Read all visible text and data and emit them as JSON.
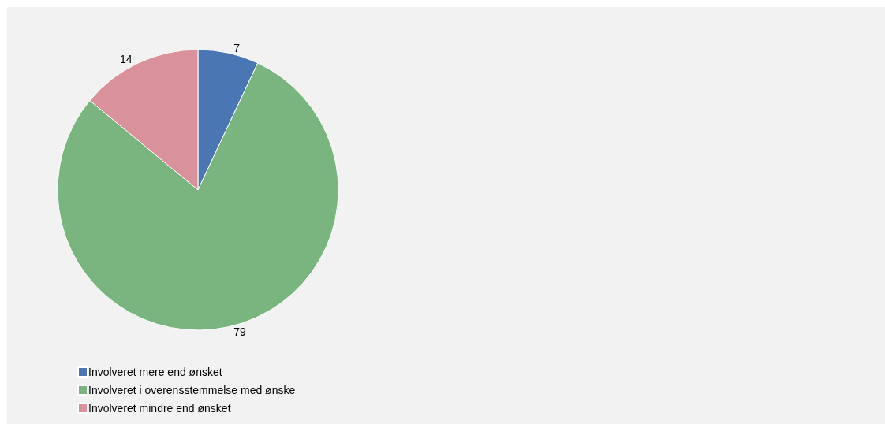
{
  "chart_data": {
    "type": "pie",
    "categories": [
      "Involveret mere end ønsket",
      "Involveret i overensstemmelse med ønske",
      "Involveret mindre end ønsket"
    ],
    "values": [
      7,
      79,
      14
    ],
    "colors": [
      "#4a76b4",
      "#7ab580",
      "#d9919b"
    ],
    "data_labels": true,
    "legend": "bottom left"
  }
}
